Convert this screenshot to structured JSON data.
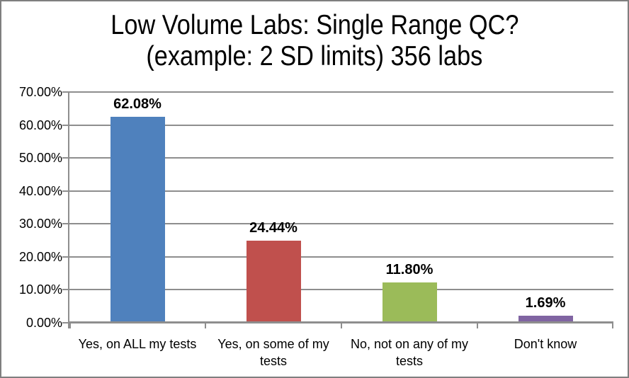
{
  "title": {
    "line1": "Low Volume Labs: Single Range QC?",
    "line2": "(example: 2 SD limits) 356 labs"
  },
  "chart_data": {
    "type": "bar",
    "title": "Low Volume Labs: Single Range QC? (example: 2 SD limits) 356 labs",
    "categories": [
      "Yes, on ALL my tests",
      "Yes, on some of my tests",
      "No, not on any of my tests",
      "Don't know"
    ],
    "values": [
      62.08,
      24.44,
      11.8,
      1.69
    ],
    "data_labels": [
      "62.08%",
      "24.44%",
      "11.80%",
      "1.69%"
    ],
    "bar_colors": [
      "#4F81BD",
      "#C0504D",
      "#9BBB59",
      "#8064A2"
    ],
    "xlabel": "",
    "ylabel": "",
    "ylim": [
      0,
      70
    ],
    "ytick_labels": [
      "0.00%",
      "10.00%",
      "20.00%",
      "30.00%",
      "40.00%",
      "50.00%",
      "60.00%",
      "70.00%"
    ],
    "ytick_step": 10,
    "grid": "on",
    "gridline_color": "#8e8e8e",
    "legend": "none",
    "background": "#ffffff",
    "frame_border_color": "#7f7f7f"
  }
}
